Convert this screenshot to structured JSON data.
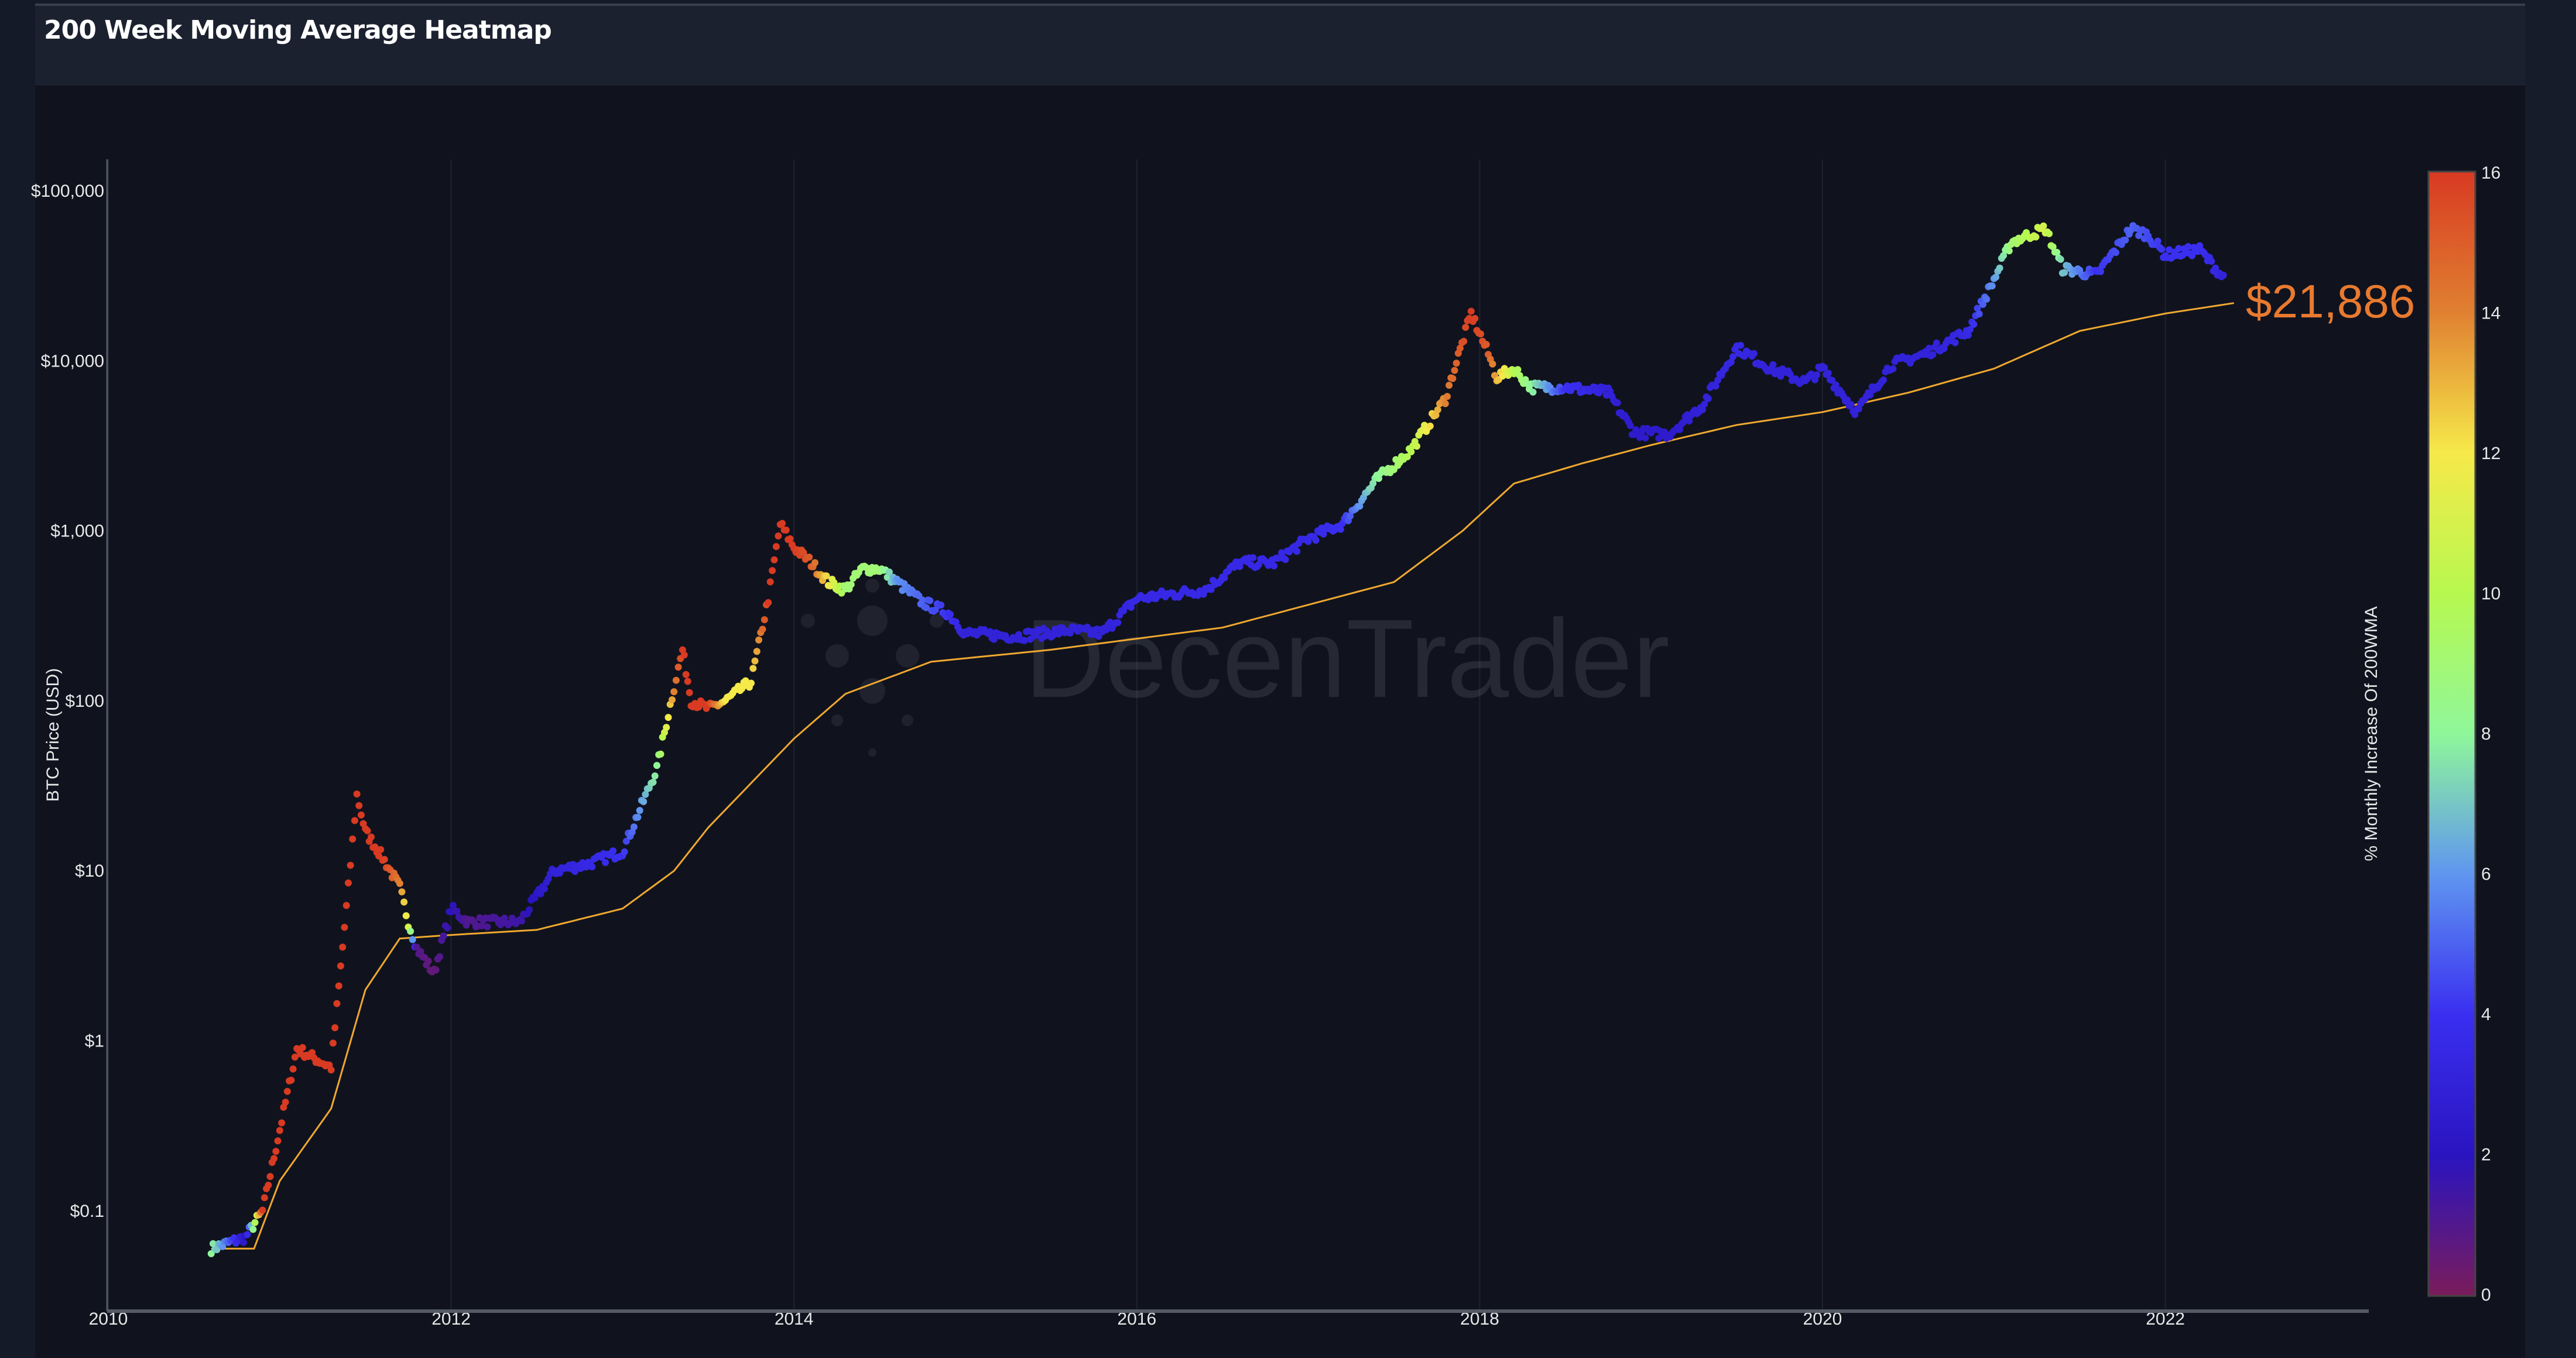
{
  "header": {
    "title": "200 Week Moving Average Heatmap"
  },
  "watermark": "DecenTrader",
  "chart_data": {
    "type": "scatter",
    "title": "200 Week Moving Average Heatmap",
    "ylabel": "BTC Price (USD)",
    "xlabel": "",
    "yscale": "log",
    "ylim": [
      0.04,
      200000
    ],
    "xlim": [
      2009.95,
      2023.5
    ],
    "x_ticks": [
      "2010",
      "2012",
      "2014",
      "2016",
      "2018",
      "2020",
      "2022"
    ],
    "y_ticks": [
      {
        "value": 100000,
        "label": "$100,000"
      },
      {
        "value": 10000,
        "label": "$10,000"
      },
      {
        "value": 1000,
        "label": "$1,000"
      },
      {
        "value": 100,
        "label": "$100"
      },
      {
        "value": 10,
        "label": "$10"
      },
      {
        "value": 1,
        "label": "$1"
      },
      {
        "value": 0.1,
        "label": "$0.1"
      }
    ],
    "grid": true,
    "current_wma_label": "$21,886",
    "current_wma_color": "#e87a30",
    "wma_line_color": "#f0a830",
    "colorbar": {
      "title": "% Monthly Increase Of 200WMA",
      "range": [
        0,
        16
      ],
      "ticks": [
        "0",
        "2",
        "4",
        "6",
        "8",
        "10",
        "12",
        "14",
        "16"
      ],
      "colorscale": [
        [
          0,
          "#7a1c5a"
        ],
        [
          2,
          "#2a14c0"
        ],
        [
          4,
          "#3a2ff0"
        ],
        [
          6,
          "#5f96f0"
        ],
        [
          8,
          "#8ff79a"
        ],
        [
          10,
          "#b7f84f"
        ],
        [
          12,
          "#f6e94a"
        ],
        [
          14,
          "#e08031"
        ],
        [
          16,
          "#d83a22"
        ]
      ]
    },
    "price_series": {
      "x": [
        2010.6,
        2010.8,
        2010.9,
        2011.0,
        2011.1,
        2011.3,
        2011.4,
        2011.45,
        2011.5,
        2011.6,
        2011.7,
        2011.75,
        2011.8,
        2011.9,
        2012.0,
        2012.1,
        2012.4,
        2012.6,
        2012.8,
        2013.0,
        2013.2,
        2013.3,
        2013.35,
        2013.4,
        2013.5,
        2013.6,
        2013.75,
        2013.85,
        2013.92,
        2014.0,
        2014.1,
        2014.2,
        2014.3,
        2014.4,
        2014.5,
        2014.6,
        2014.75,
        2014.9,
        2015.0,
        2015.3,
        2015.6,
        2015.8,
        2016.0,
        2016.4,
        2016.6,
        2016.8,
        2017.0,
        2017.2,
        2017.4,
        2017.6,
        2017.8,
        2017.95,
        2018.05,
        2018.1,
        2018.2,
        2018.3,
        2018.5,
        2018.75,
        2018.9,
        2019.1,
        2019.3,
        2019.5,
        2019.7,
        2019.9,
        2020.0,
        2020.2,
        2020.4,
        2020.6,
        2020.85,
        2021.0,
        2021.1,
        2021.3,
        2021.4,
        2021.6,
        2021.8,
        2021.9,
        2022.0,
        2022.2,
        2022.35
      ],
      "price": [
        0.06,
        0.07,
        0.1,
        0.3,
        0.9,
        0.7,
        8,
        28,
        17,
        12,
        8,
        5,
        3.5,
        2.5,
        6,
        5,
        5,
        10,
        11,
        13,
        40,
        120,
        200,
        100,
        90,
        100,
        130,
        400,
        1100,
        800,
        650,
        500,
        450,
        600,
        600,
        500,
        380,
        330,
        250,
        240,
        260,
        250,
        400,
        450,
        650,
        650,
        900,
        1100,
        2000,
        3000,
        6000,
        19000,
        11000,
        8000,
        9000,
        7000,
        7000,
        6500,
        3800,
        3700,
        5500,
        12000,
        9000,
        7500,
        9000,
        5000,
        9500,
        11000,
        15000,
        30000,
        50000,
        60000,
        35000,
        32000,
        60000,
        55000,
        42000,
        45000,
        30000
      ],
      "heat": [
        8,
        2,
        16,
        16,
        16,
        16,
        16,
        16,
        16,
        16,
        14,
        11,
        1,
        0.5,
        2,
        1,
        1.5,
        3,
        3.5,
        4,
        8,
        14,
        16,
        16,
        16,
        12,
        12,
        16,
        16,
        16,
        15,
        12,
        9,
        9,
        9,
        6,
        5,
        4,
        3,
        3,
        3,
        3,
        3.5,
        3.5,
        3.5,
        3.5,
        3.5,
        4,
        8,
        10,
        14,
        16,
        15,
        13,
        10,
        8,
        4,
        3,
        2.5,
        2.5,
        3,
        3.5,
        3,
        3,
        3,
        3,
        3,
        3,
        3.5,
        6,
        9,
        11,
        7,
        4,
        5,
        4.5,
        4,
        4,
        3
      ]
    },
    "wma_series": {
      "x": [
        2010.6,
        2010.85,
        2011.0,
        2011.3,
        2011.5,
        2011.7,
        2012.0,
        2012.5,
        2013.0,
        2013.3,
        2013.5,
        2014.0,
        2014.3,
        2014.8,
        2015.5,
        2016.5,
        2017.5,
        2017.9,
        2018.2,
        2018.6,
        2019.0,
        2019.5,
        2020.0,
        2020.5,
        2021.0,
        2021.5,
        2022.0,
        2022.4
      ],
      "price": [
        0.06,
        0.06,
        0.15,
        0.4,
        2,
        4,
        4.2,
        4.5,
        6,
        10,
        18,
        60,
        110,
        170,
        200,
        270,
        500,
        1000,
        1900,
        2500,
        3200,
        4200,
        5000,
        6500,
        9000,
        15000,
        19000,
        21886
      ]
    }
  }
}
